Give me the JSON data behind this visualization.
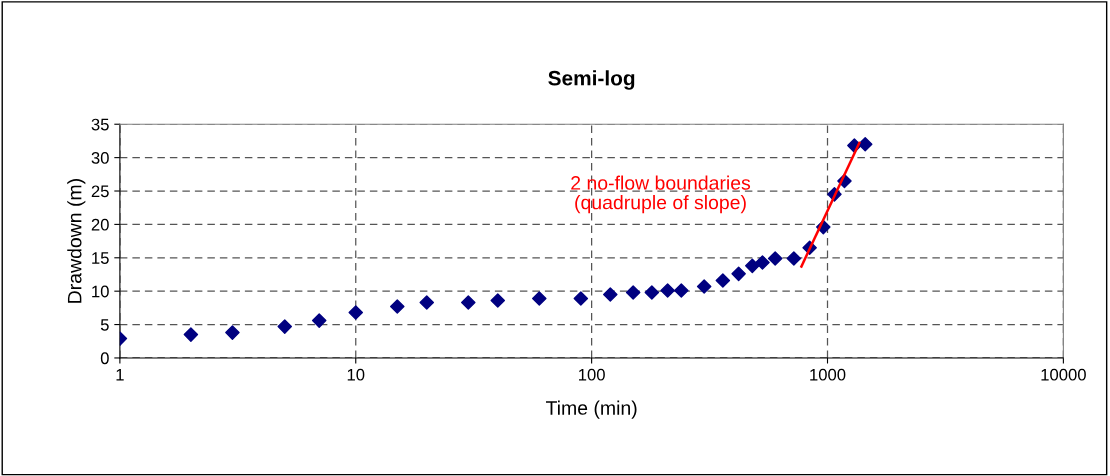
{
  "chart_data": {
    "type": "scatter",
    "title": "Semi-log",
    "xlabel": "Time (min)",
    "ylabel": "Drawdown (m)",
    "log": "x",
    "grid": true,
    "legend": false,
    "xlim": [
      1,
      10000
    ],
    "xticks": [
      1,
      10,
      100,
      1000,
      10000
    ],
    "ylim": [
      0,
      35
    ],
    "yticks": [
      0,
      5,
      10,
      15,
      20,
      25,
      30,
      35
    ],
    "annotations": [
      "2 no-flow boundaries\n(quadruple of slope)"
    ],
    "series": [
      {
        "marker": "diamond",
        "color": "#000080",
        "x": [
          1,
          2,
          3,
          5,
          7,
          10,
          15,
          20,
          30,
          40,
          60,
          90,
          120,
          150,
          180,
          210,
          240,
          300,
          360,
          420,
          480,
          530,
          600,
          720,
          840,
          960,
          1070,
          1180,
          1300,
          1445
        ],
        "values": [
          2.9,
          3.5,
          3.8,
          4.7,
          5.6,
          6.8,
          7.7,
          8.3,
          8.3,
          8.6,
          8.9,
          8.9,
          9.5,
          9.8,
          9.8,
          10.1,
          10.1,
          10.7,
          11.6,
          12.6,
          13.8,
          14.3,
          14.9,
          14.9,
          16.5,
          19.6,
          24.5,
          26.5,
          31.8,
          32.0
        ]
      },
      {
        "type": "line",
        "color": "#ff0000",
        "line_style": "solid",
        "x": [
          775,
          1365
        ],
        "values": [
          13.7,
          32.2
        ]
      }
    ]
  }
}
